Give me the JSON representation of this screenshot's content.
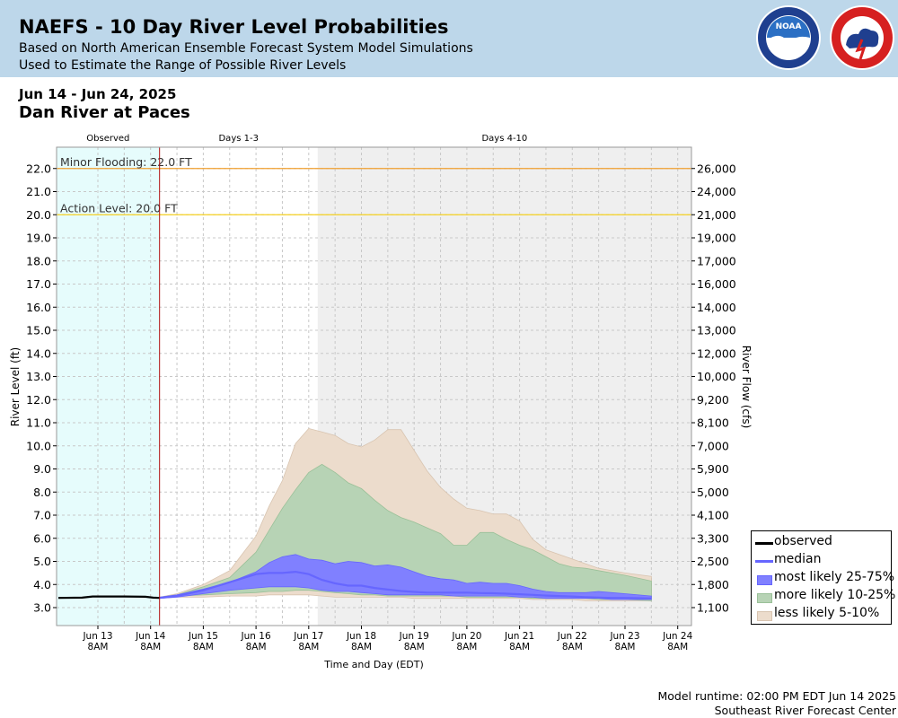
{
  "header": {
    "title": "NAEFS - 10 Day River Level Probabilities",
    "subtitle1": "Based on North American Ensemble Forecast System Model Simulations",
    "subtitle2": "Used to Estimate the Range of Possible River Levels",
    "bg_color": "#bdd7ea"
  },
  "date_range": "Jun 14 - Jun 24, 2025",
  "station": "Dan River at Paces",
  "footer": {
    "runtime": "Model runtime: 02:00 PM EDT Jun 14 2025",
    "center": "Southeast River Forecast Center"
  },
  "legend": {
    "observed": "observed",
    "median": "median",
    "most_likely": "most likely 25-75%",
    "more_likely": "more likely 10-25%",
    "less_likely": "less likely 5-10%"
  },
  "chart_data": {
    "type": "area",
    "ylabel": "River Level (ft)",
    "y2label": "River Flow (cfs)",
    "xlabel": "Time and Day (EDT)",
    "ylim": [
      2.3,
      23.0
    ],
    "grid": true,
    "legend_position": "bottom-right",
    "period_labels": [
      "Observed",
      "Days 1-3",
      "Days 4-10"
    ],
    "x_ticks": [
      "Jun 13",
      "Jun 14",
      "Jun 15",
      "Jun 16",
      "Jun 17",
      "Jun 18",
      "Jun 19",
      "Jun 20",
      "Jun 21",
      "Jun 22",
      "Jun 23",
      "Jun 24"
    ],
    "x_tick_time": "8AM",
    "y_ticks": [
      3.0,
      4.0,
      5.0,
      6.0,
      7.0,
      8.0,
      9.0,
      10.0,
      11.0,
      12.0,
      13.0,
      14.0,
      15.0,
      16.0,
      17.0,
      18.0,
      19.0,
      20.0,
      21.0,
      22.0
    ],
    "y_tick_labels": [
      "3.0",
      "4.0",
      "5.0",
      "6.0",
      "7.0",
      "8.0",
      "9.0",
      "10.0",
      "11.0",
      "12.0",
      "13.0",
      "14.0",
      "15.0",
      "16.0",
      "17.0",
      "18.0",
      "19.0",
      "20.0",
      "21.0",
      "22.0"
    ],
    "y2_tick_labels": [
      "1,100",
      "1,800",
      "2,500",
      "3,300",
      "4,100",
      "5,000",
      "5,900",
      "7,000",
      "8,100",
      "9,200",
      "10,000",
      "12,000",
      "13,000",
      "14,000",
      "16,000",
      "17,000",
      "19,000",
      "21,000",
      "24,000",
      "26,000"
    ],
    "thresholds": [
      {
        "label": "Minor Flooding: 22.0 FT",
        "value": 22.0,
        "color": "#f0a030"
      },
      {
        "label": "Action Level: 20.0 FT",
        "value": 20.0,
        "color": "#f5d020"
      }
    ],
    "observed_end_day": 1.17,
    "days_4_10_start_day": 4.17,
    "observed": {
      "x": [
        -0.75,
        -0.3,
        -0.1,
        0.5,
        0.9,
        1.05,
        1.17
      ],
      "y": [
        3.42,
        3.43,
        3.48,
        3.48,
        3.47,
        3.43,
        3.42
      ]
    },
    "x": [
      1.17,
      1.5,
      2.0,
      2.5,
      3.0,
      3.25,
      3.5,
      3.75,
      4.0,
      4.25,
      4.5,
      4.75,
      5.0,
      5.25,
      5.5,
      5.75,
      6.0,
      6.25,
      6.5,
      6.75,
      7.0,
      7.25,
      7.5,
      7.75,
      8.0,
      8.25,
      8.5,
      8.75,
      9.0,
      9.25,
      9.5,
      9.75,
      10.0,
      10.5
    ],
    "series": [
      {
        "name": "less likely 5-10%",
        "upper": [
          3.45,
          3.6,
          4.0,
          4.6,
          6.1,
          7.4,
          8.5,
          10.1,
          10.75,
          10.6,
          10.45,
          10.1,
          9.95,
          10.25,
          10.7,
          10.7,
          9.8,
          8.9,
          8.2,
          7.7,
          7.3,
          7.2,
          7.05,
          7.05,
          6.75,
          5.95,
          5.5,
          5.3,
          5.1,
          4.9,
          4.7,
          4.6,
          4.5,
          4.35
        ],
        "lower": [
          3.4,
          3.45,
          3.45,
          3.5,
          3.5,
          3.55,
          3.55,
          3.55,
          3.55,
          3.5,
          3.45,
          3.45,
          3.45,
          3.45,
          3.45,
          3.45,
          3.4,
          3.4,
          3.4,
          3.4,
          3.4,
          3.4,
          3.4,
          3.4,
          3.4,
          3.35,
          3.35,
          3.35,
          3.35,
          3.3,
          3.3,
          3.3,
          3.3,
          3.3
        ]
      },
      {
        "name": "more likely 10-25%",
        "upper": [
          3.45,
          3.55,
          3.9,
          4.3,
          5.4,
          6.35,
          7.3,
          8.1,
          8.85,
          9.2,
          8.85,
          8.4,
          8.15,
          7.65,
          7.2,
          6.9,
          6.7,
          6.45,
          6.2,
          5.7,
          5.7,
          6.25,
          6.25,
          5.95,
          5.7,
          5.5,
          5.2,
          4.9,
          4.75,
          4.7,
          4.6,
          4.5,
          4.4,
          4.15
        ],
        "lower": [
          3.4,
          3.5,
          3.55,
          3.6,
          3.65,
          3.7,
          3.7,
          3.75,
          3.75,
          3.7,
          3.65,
          3.6,
          3.55,
          3.55,
          3.5,
          3.5,
          3.5,
          3.5,
          3.5,
          3.5,
          3.45,
          3.45,
          3.45,
          3.45,
          3.45,
          3.4,
          3.4,
          3.4,
          3.4,
          3.4,
          3.35,
          3.35,
          3.35,
          3.3
        ]
      },
      {
        "name": "most likely 25-75%",
        "upper": [
          3.45,
          3.55,
          3.8,
          4.1,
          4.55,
          4.95,
          5.2,
          5.3,
          5.1,
          5.05,
          4.9,
          5.0,
          4.95,
          4.8,
          4.85,
          4.75,
          4.55,
          4.35,
          4.25,
          4.2,
          4.05,
          4.1,
          4.05,
          4.05,
          3.95,
          3.8,
          3.7,
          3.65,
          3.65,
          3.65,
          3.7,
          3.65,
          3.6,
          3.5
        ],
        "lower": [
          3.4,
          3.45,
          3.6,
          3.75,
          3.85,
          3.9,
          3.9,
          3.9,
          3.85,
          3.75,
          3.7,
          3.7,
          3.65,
          3.6,
          3.55,
          3.55,
          3.55,
          3.55,
          3.55,
          3.5,
          3.5,
          3.5,
          3.5,
          3.5,
          3.45,
          3.45,
          3.4,
          3.4,
          3.4,
          3.4,
          3.4,
          3.35,
          3.35,
          3.35
        ]
      },
      {
        "name": "median",
        "values": [
          3.42,
          3.5,
          3.75,
          4.1,
          4.45,
          4.5,
          4.5,
          4.55,
          4.45,
          4.2,
          4.05,
          3.95,
          3.95,
          3.85,
          3.78,
          3.72,
          3.68,
          3.65,
          3.65,
          3.65,
          3.65,
          3.63,
          3.62,
          3.6,
          3.58,
          3.55,
          3.52,
          3.5,
          3.48,
          3.45,
          3.43,
          3.42,
          3.42,
          3.4
        ]
      }
    ],
    "colors": {
      "observed": "#000000",
      "median": "#6666ff",
      "most_likely": "#8080ff",
      "more_likely": "#b7d3b5",
      "less_likely": "#ecdccc",
      "observed_bg": "#e6fcfc",
      "days_4_10_bg": "#efefef",
      "now_line": "#b01010"
    }
  }
}
